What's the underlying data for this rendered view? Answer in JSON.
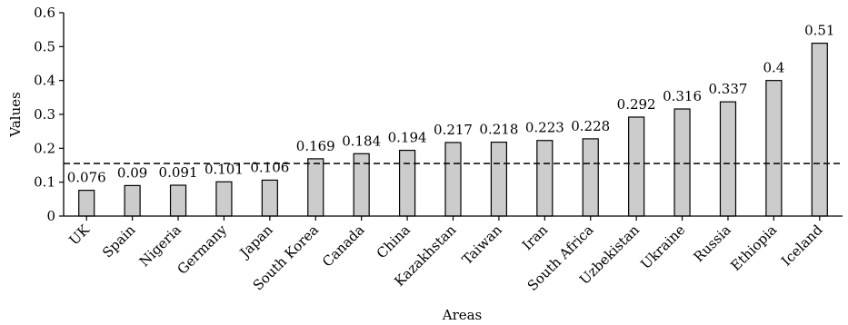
{
  "chart_data": {
    "type": "bar",
    "title": "",
    "xlabel": "Areas",
    "ylabel": "Values",
    "ylim": [
      0,
      0.6
    ],
    "yticks": [
      "0",
      "0.1",
      "0.2",
      "0.3",
      "0.4",
      "0.5",
      "0.6"
    ],
    "grid": false,
    "categories": [
      "UK",
      "Spain",
      "Nigeria",
      "Germany",
      "Japan",
      "South Korea",
      "Canada",
      "China",
      "Kazakhstan",
      "Taiwan",
      "Iran",
      "South Africa",
      "Uzbekistan",
      "Ukraine",
      "Russia",
      "Ethiopia",
      "Iceland"
    ],
    "values": [
      0.076,
      0.09,
      0.091,
      0.101,
      0.106,
      0.169,
      0.184,
      0.194,
      0.217,
      0.218,
      0.223,
      0.228,
      0.292,
      0.316,
      0.337,
      0.4,
      0.51
    ],
    "value_labels": [
      "0.076",
      "0.09",
      "0.091",
      "0.101",
      "0.106",
      "0.169",
      "0.184",
      "0.194",
      "0.217",
      "0.218",
      "0.223",
      "0.228",
      "0.292",
      "0.316",
      "0.337",
      "0.4",
      "0.51"
    ],
    "reference_line": {
      "value": 0.155,
      "style": "dashed"
    },
    "colors": {
      "bar_fill": "#cccccc",
      "bar_stroke": "#000000",
      "axis": "#000000"
    }
  }
}
